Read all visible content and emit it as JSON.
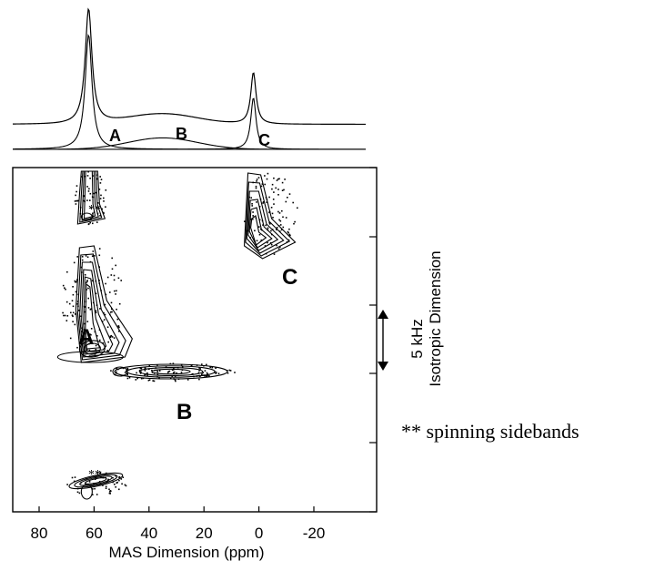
{
  "chart_data": {
    "type": "contour",
    "title": "",
    "xlabel": "MAS Dimension (ppm)",
    "x_ticks": [
      "80",
      "60",
      "40",
      "20",
      "0",
      "-20"
    ],
    "x_tick_values": [
      80,
      60,
      40,
      20,
      0,
      -20
    ],
    "xlim": [
      100,
      -40
    ],
    "x_reversed": true,
    "ylabel": "Isotropic Dimension",
    "scale_bar_label": "5 kHz",
    "grid": false,
    "one_d_spectrum": {
      "peaks": [
        {
          "label": "A",
          "position_ppm": 62,
          "relative_height": 1.0
        },
        {
          "label": "B",
          "position_ppm": 35,
          "relative_height": 0.1
        },
        {
          "label": "C",
          "position_ppm": 2,
          "relative_height": 0.45
        }
      ]
    },
    "contour_sites": [
      {
        "label": "A",
        "mas_ppm": 62
      },
      {
        "label": "B",
        "mas_ppm": 35
      },
      {
        "label": "C",
        "mas_ppm": 2
      }
    ],
    "sideband_marker": "**",
    "annotation": "** spinning sidebands"
  },
  "colors": {
    "ink": "#000000",
    "background": "#ffffff"
  }
}
